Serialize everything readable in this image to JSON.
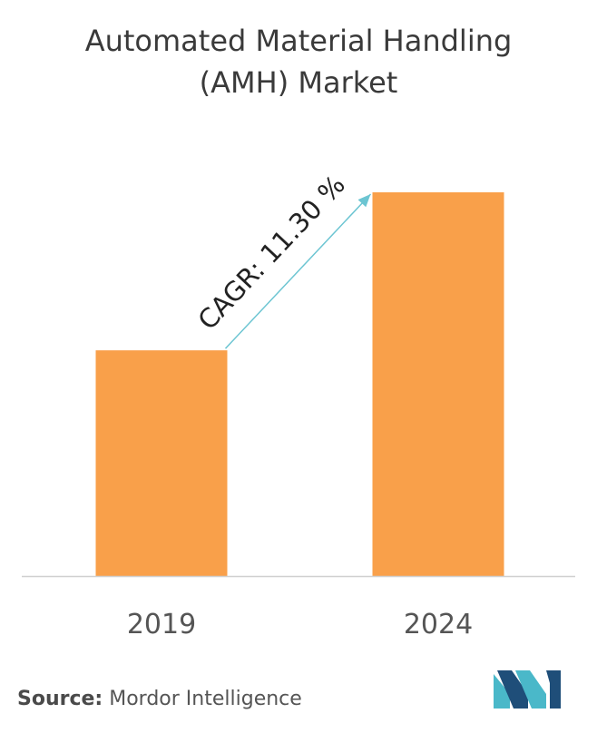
{
  "title_lines": [
    "Automated Material Handling",
    "(AMH) Market"
  ],
  "chart_data": {
    "type": "bar",
    "title": "Automated Material Handling (AMH) Market",
    "categories": [
      "2019",
      "2024"
    ],
    "values": [
      1.0,
      1.7
    ],
    "ylim": [
      0,
      1.7
    ],
    "xlabel": "",
    "ylabel": "",
    "grid": false,
    "bar_color": "#f9a04a",
    "annotation": {
      "text": "CAGR: 11.30 %",
      "arrow_color": "#6cc5d2"
    }
  },
  "source": {
    "label": "Source:",
    "text": "Mordor Intelligence"
  },
  "logo": {
    "icon": "mordor-intelligence-logo-icon",
    "colors": [
      "#1f4e79",
      "#4ab8c9"
    ]
  }
}
